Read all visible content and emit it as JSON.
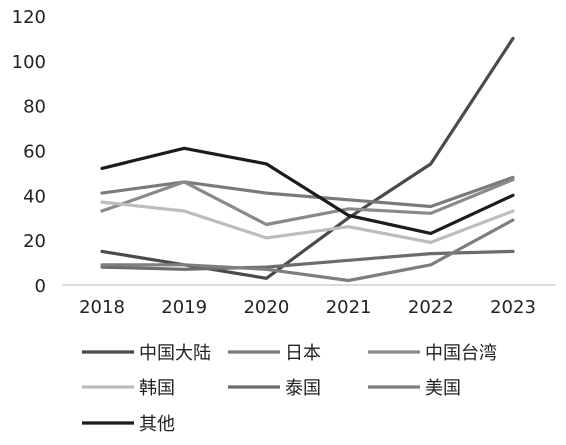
{
  "chart_data": {
    "type": "line",
    "title": "",
    "xlabel": "",
    "ylabel": "",
    "x": [
      "2018",
      "2019",
      "2020",
      "2021",
      "2022",
      "2023"
    ],
    "ylim": [
      0,
      120
    ],
    "yticks": [
      0,
      20,
      40,
      60,
      80,
      100,
      120
    ],
    "grid": false,
    "legend_position": "bottom",
    "series": [
      {
        "name": "中国大陆",
        "color": "#4a4a4a",
        "values": [
          15,
          9,
          3,
          30,
          54,
          110
        ]
      },
      {
        "name": "日本",
        "color": "#7a7a7a",
        "values": [
          41,
          46,
          41,
          38,
          35,
          48
        ]
      },
      {
        "name": "中国台湾",
        "color": "#8a8a8a",
        "values": [
          33,
          46,
          27,
          34,
          32,
          47
        ]
      },
      {
        "name": "韩国",
        "color": "#bdbdbd",
        "values": [
          37,
          33,
          21,
          26,
          19,
          33
        ]
      },
      {
        "name": "泰国",
        "color": "#6c6c6c",
        "values": [
          8,
          7,
          8,
          11,
          14,
          15
        ]
      },
      {
        "name": "美国",
        "color": "#7e7e7e",
        "values": [
          9,
          9,
          7,
          2,
          9,
          29
        ]
      },
      {
        "name": "其他",
        "color": "#1c1c1c",
        "values": [
          52,
          61,
          54,
          31,
          23,
          40
        ]
      }
    ]
  }
}
